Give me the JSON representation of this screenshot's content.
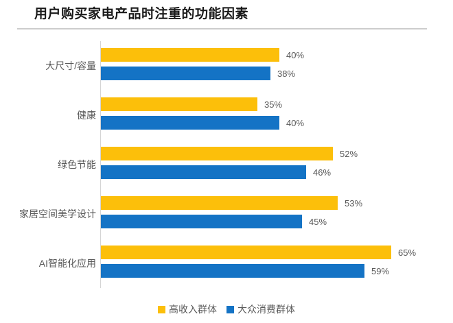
{
  "chart": {
    "title": "用户购买家电产品时注重的功能因素"
  },
  "chart_data": {
    "type": "bar",
    "orientation": "horizontal",
    "title": "用户购买家电产品时注重的功能因素",
    "categories": [
      "大尺寸/容量",
      "健康",
      "绿色节能",
      "家居空间美学设计",
      "AI智能化应用"
    ],
    "series": [
      {
        "name": "高收入群体",
        "color": "#FCBF0A",
        "values": [
          40,
          35,
          52,
          53,
          65
        ]
      },
      {
        "name": "大众消费群体",
        "color": "#1473C5",
        "values": [
          38,
          40,
          46,
          45,
          59
        ]
      }
    ],
    "value_suffix": "%",
    "xlim": [
      0,
      100
    ],
    "data_labels": true,
    "grid": false,
    "legend_position": "bottom",
    "axis_line_color": "#d4d4d4",
    "label_color": "#595959"
  },
  "legend": {
    "items": [
      {
        "label": "高收入群体",
        "color": "#FCBF0A"
      },
      {
        "label": "大众消费群体",
        "color": "#1473C5"
      }
    ]
  }
}
